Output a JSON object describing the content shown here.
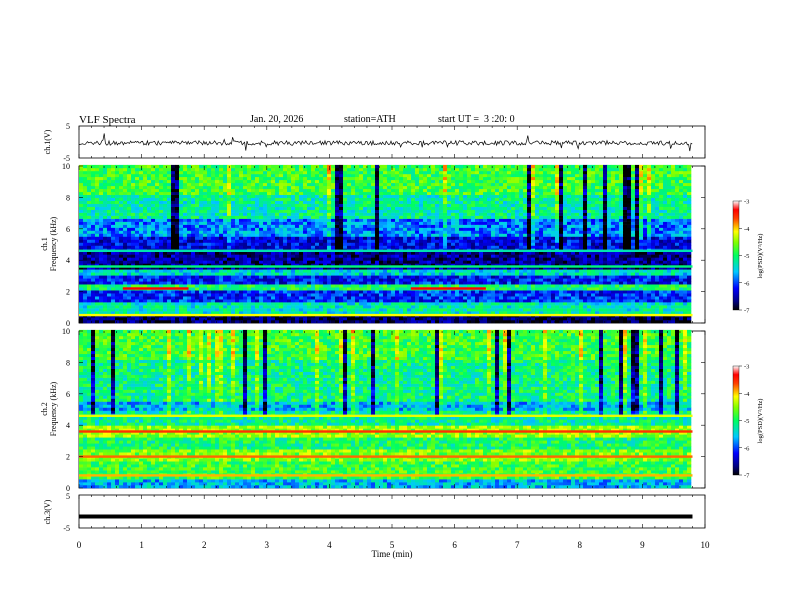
{
  "header": {
    "title": "VLF Spectra",
    "date": "Jan. 20, 2026",
    "station": "station=ATH",
    "start_ut": "start UT =  3 :20: 0"
  },
  "chart_data": [
    {
      "type": "line",
      "panel": "ch1-waveform",
      "ylabel": "ch.1(V)",
      "ylim": [
        -5,
        5
      ],
      "yticks": [
        "5",
        "-5"
      ],
      "xlim": [
        0,
        10
      ],
      "baseline": -0.3,
      "color": "#000000"
    },
    {
      "type": "heatmap",
      "panel": "ch1-spectrogram",
      "ylabel_line1": "ch.1",
      "ylabel_line2": "Frequency  (kHz)",
      "yticks": [
        "0",
        "2",
        "4",
        "6",
        "8",
        "10"
      ],
      "ylim": [
        0,
        10
      ],
      "xlim": [
        0,
        9.8
      ],
      "colorbar": {
        "label": "log(PSD)(V²/Hz)",
        "ticks": [
          "-3",
          "-4",
          "-5",
          "-6",
          "-7"
        ],
        "range": [
          -7,
          -3
        ]
      },
      "bands_khz": [
        {
          "from": 0,
          "to": 0.4,
          "level": -7.0
        },
        {
          "from": 0.4,
          "to": 1.2,
          "level": -5.5
        },
        {
          "from": 1.2,
          "to": 1.9,
          "level": -6.3
        },
        {
          "from": 1.9,
          "to": 2.3,
          "level": -5.2
        },
        {
          "from": 2.3,
          "to": 3.0,
          "level": -6.4
        },
        {
          "from": 3.0,
          "to": 3.3,
          "level": -5.6
        },
        {
          "from": 3.3,
          "to": 4.4,
          "level": -6.8
        },
        {
          "from": 4.4,
          "to": 5.4,
          "level": -6.5
        },
        {
          "from": 5.4,
          "to": 6.5,
          "level": -6.0
        },
        {
          "from": 6.5,
          "to": 8.0,
          "level": -5.4
        },
        {
          "from": 8.0,
          "to": 10.0,
          "level": -5.0
        }
      ],
      "lines_khz": [
        {
          "khz": 2.2,
          "level": -3.3,
          "x_from": 0.7,
          "x_to": 1.75
        },
        {
          "khz": 2.2,
          "level": -3.3,
          "x_from": 5.3,
          "x_to": 6.5
        },
        {
          "khz": 0.5,
          "level": -4.2,
          "x_from": 0,
          "x_to": 9.8
        },
        {
          "khz": 3.6,
          "level": -5.3,
          "x_from": 0,
          "x_to": 9.8
        },
        {
          "khz": 4.6,
          "level": -5.5,
          "x_from": 0,
          "x_to": 9.8
        }
      ]
    },
    {
      "type": "heatmap",
      "panel": "ch2-spectrogram",
      "ylabel_line1": "ch.2",
      "ylabel_line2": "Frequency  (kHz)",
      "yticks": [
        "0",
        "2",
        "4",
        "6",
        "8",
        "10"
      ],
      "ylim": [
        0,
        10
      ],
      "xlim": [
        0,
        9.8
      ],
      "colorbar": {
        "label": "log(PSD)(V²/Hz)",
        "ticks": [
          "-3",
          "-4",
          "-5",
          "-6",
          "-7"
        ],
        "range": [
          -7,
          -3
        ]
      },
      "bands_khz": [
        {
          "from": 0,
          "to": 0.4,
          "level": -5.8
        },
        {
          "from": 0.4,
          "to": 1.6,
          "level": -5.0
        },
        {
          "from": 1.6,
          "to": 2.4,
          "level": -4.7
        },
        {
          "from": 2.4,
          "to": 3.2,
          "level": -5.2
        },
        {
          "from": 3.2,
          "to": 3.9,
          "level": -4.6
        },
        {
          "from": 3.9,
          "to": 4.8,
          "level": -5.4
        },
        {
          "from": 4.8,
          "to": 5.5,
          "level": -5.8
        },
        {
          "from": 5.5,
          "to": 8.0,
          "level": -5.3
        },
        {
          "from": 8.0,
          "to": 10.0,
          "level": -5.0
        }
      ],
      "lines_khz": [
        {
          "khz": 2.0,
          "level": -3.8,
          "x_from": 0,
          "x_to": 9.8
        },
        {
          "khz": 3.6,
          "level": -3.6,
          "x_from": 0,
          "x_to": 9.8
        },
        {
          "khz": 4.6,
          "level": -4.3,
          "x_from": 0,
          "x_to": 9.8
        },
        {
          "khz": 0.8,
          "level": -4.0,
          "x_from": 0,
          "x_to": 9.8
        }
      ]
    },
    {
      "type": "line",
      "panel": "ch3-waveform",
      "ylabel": "ch.3(V)",
      "ylim": [
        -5,
        5
      ],
      "yticks": [
        "5",
        "-5"
      ],
      "xlim": [
        0,
        10
      ],
      "baseline": -1.5,
      "color": "#000000",
      "xlabel": "Time  (min)",
      "xticks": [
        "0",
        "1",
        "2",
        "3",
        "4",
        "5",
        "6",
        "7",
        "8",
        "9",
        "10"
      ]
    }
  ]
}
